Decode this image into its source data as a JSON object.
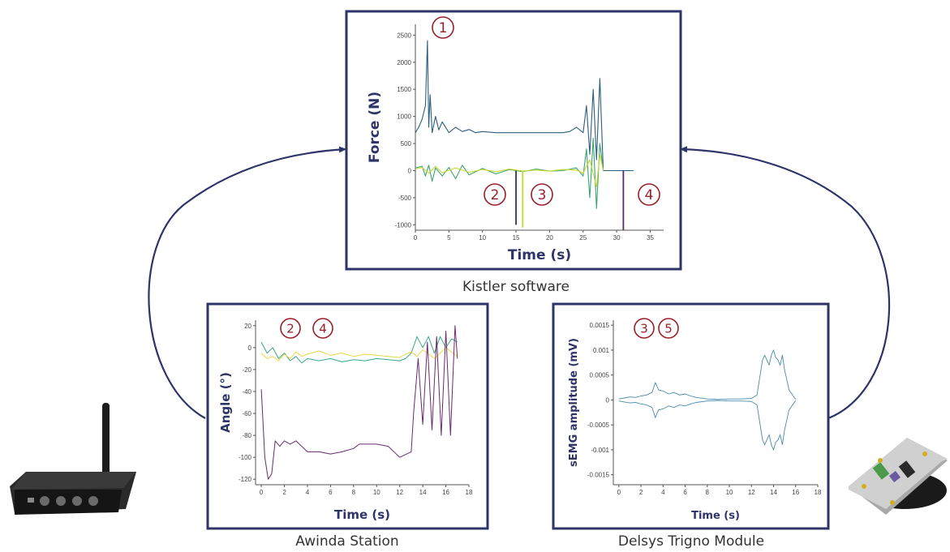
{
  "colors": {
    "panel_border": "#2e3468",
    "connector": "#2e3468",
    "marker": "#9a1f2a",
    "axis_title": "#2e3468",
    "force_vertical": "#2d5e7e",
    "force_green": "#3aa66e",
    "force_yellow": "#c8d82a",
    "angle_green": "#3aa68a",
    "angle_yellow": "#e8d84a",
    "angle_purple": "#6a2a6e",
    "emg": "#4a8aaa",
    "event_line_1": "#2e3468",
    "event_line_2": "#c8d82a",
    "event_line_3": "#5a2a6e"
  },
  "captions": {
    "kistler": "Kistler software",
    "awinda": "Awinda Station",
    "delsys": "Delsys Trigno Module"
  },
  "devices": {
    "left_icon": "wireless-router-icon",
    "right_icon": "emg-trigger-module-icon"
  },
  "chart_data": [
    {
      "type": "line",
      "panel": "kistler",
      "xlabel": "Time (s)",
      "ylabel": "Force (N)",
      "xlim": [
        0,
        37
      ],
      "ylim": [
        -1100,
        2700
      ],
      "xticks": [
        "0",
        "5",
        "10",
        "15",
        "20",
        "25",
        "30",
        "35"
      ],
      "xtick_values": [
        0,
        5,
        10,
        15,
        20,
        25,
        30,
        35
      ],
      "yticks": [
        "-1000",
        "-500",
        "0",
        "500",
        "1000",
        "1500",
        "2000",
        "2500"
      ],
      "ytick_values": [
        -1000,
        -500,
        0,
        500,
        1000,
        1500,
        2000,
        2500
      ],
      "series": [
        {
          "color": "#2d5e7e",
          "x": [
            0,
            0.5,
            1,
            1.5,
            1.8,
            2,
            2.2,
            2.5,
            3,
            3.5,
            4,
            5,
            6,
            7,
            8,
            9,
            10,
            12,
            14,
            16,
            18,
            20,
            22,
            23,
            24,
            25,
            25.5,
            26,
            26.5,
            27,
            27.5,
            28,
            32.5
          ],
          "y": [
            700,
            800,
            950,
            1200,
            2400,
            800,
            1400,
            700,
            1000,
            750,
            900,
            700,
            800,
            720,
            760,
            700,
            720,
            700,
            700,
            700,
            700,
            700,
            700,
            720,
            800,
            700,
            1200,
            300,
            1500,
            200,
            1700,
            0,
            0
          ]
        },
        {
          "color": "#3aa66e",
          "x": [
            0,
            1,
            1.5,
            2,
            2.5,
            3,
            4,
            5,
            6,
            7,
            8,
            10,
            12,
            14,
            16,
            18,
            20,
            22,
            24,
            25,
            25.5,
            26,
            26.5,
            27,
            27.5,
            28
          ],
          "y": [
            50,
            80,
            -100,
            100,
            -200,
            50,
            -100,
            60,
            -150,
            100,
            -80,
            40,
            -60,
            20,
            -20,
            30,
            -10,
            0,
            50,
            -100,
            400,
            -500,
            600,
            -700,
            500,
            0
          ]
        },
        {
          "color": "#c8d82a",
          "x": [
            0,
            1,
            2,
            3,
            4,
            6,
            8,
            10,
            12,
            14,
            16,
            18,
            20,
            22,
            24,
            25,
            26,
            27,
            27.5,
            28
          ],
          "y": [
            30,
            60,
            -50,
            80,
            -40,
            50,
            -30,
            20,
            -20,
            30,
            -10,
            10,
            -10,
            20,
            10,
            -50,
            200,
            -300,
            300,
            0
          ]
        }
      ],
      "events": [
        {
          "x": 15,
          "y_bottom": -1000,
          "color": "#2e3468"
        },
        {
          "x": 16,
          "y_bottom": -1050,
          "color": "#c8d82a"
        },
        {
          "x": 31,
          "y_bottom": -1100,
          "color": "#5a2a6e"
        }
      ],
      "markers": [
        "1",
        "2",
        "3",
        "4"
      ]
    },
    {
      "type": "line",
      "panel": "awinda",
      "xlabel": "Time (s)",
      "ylabel": "Angle (°)",
      "xlim": [
        -0.5,
        18
      ],
      "ylim": [
        -125,
        25
      ],
      "xticks": [
        "0",
        "2",
        "4",
        "6",
        "8",
        "10",
        "12",
        "14",
        "16",
        "18"
      ],
      "xtick_values": [
        0,
        2,
        4,
        6,
        8,
        10,
        12,
        14,
        16,
        18
      ],
      "yticks": [
        "-120",
        "-100",
        "-80",
        "-60",
        "-40",
        "-20",
        "0",
        "20"
      ],
      "ytick_values": [
        -120,
        -100,
        -80,
        -60,
        -40,
        -20,
        0,
        20
      ],
      "series": [
        {
          "color": "#3aa68a",
          "x": [
            0,
            0.5,
            1,
            1.5,
            2,
            2.5,
            3,
            3.5,
            4,
            5,
            6,
            7,
            8,
            9,
            10,
            11,
            12,
            12.5,
            13,
            13.5,
            14,
            14.5,
            15,
            15.5,
            16,
            16.5,
            17
          ],
          "y": [
            5,
            -5,
            0,
            -10,
            -5,
            -12,
            -8,
            -14,
            -10,
            -12,
            -10,
            -13,
            -11,
            -12,
            -10,
            -11,
            -12,
            -10,
            -5,
            10,
            0,
            10,
            -5,
            10,
            0,
            8,
            5
          ]
        },
        {
          "color": "#e8d84a",
          "x": [
            0,
            0.5,
            1,
            1.5,
            2,
            2.5,
            3,
            3.5,
            4,
            5,
            6,
            7,
            8,
            9,
            10,
            11,
            12,
            12.5,
            13,
            13.5,
            14,
            15,
            16,
            17
          ],
          "y": [
            -5,
            -10,
            -8,
            -12,
            -6,
            -10,
            -4,
            -8,
            -6,
            -3,
            -7,
            -5,
            -8,
            -6,
            -7,
            -8,
            -9,
            -6,
            -4,
            -8,
            -2,
            -10,
            0,
            -8
          ]
        },
        {
          "color": "#6a2a6e",
          "x": [
            0,
            0.3,
            0.6,
            0.9,
            1.2,
            1.6,
            2,
            2.5,
            3,
            3.5,
            4,
            5,
            6,
            7,
            8,
            8.5,
            9,
            10,
            11,
            12,
            13,
            13.2,
            13.6,
            14,
            14.4,
            14.8,
            15.2,
            15.6,
            16,
            16.4,
            16.8,
            17
          ],
          "y": [
            -38,
            -100,
            -120,
            -115,
            -85,
            -90,
            -85,
            -88,
            -85,
            -90,
            -95,
            -95,
            -97,
            -95,
            -92,
            -88,
            -88,
            -88,
            -90,
            -100,
            -95,
            -60,
            -10,
            -70,
            5,
            -75,
            10,
            -80,
            15,
            -80,
            20,
            -10
          ]
        }
      ],
      "markers": [
        "2",
        "4"
      ]
    },
    {
      "type": "line",
      "panel": "delsys",
      "xlabel": "Time (s)",
      "ylabel": "sEMG amplitude (mV)",
      "xlim": [
        -0.5,
        18
      ],
      "ylim": [
        -0.0017,
        0.0016
      ],
      "xticks": [
        "0",
        "2",
        "4",
        "6",
        "8",
        "10",
        "12",
        "14",
        "16",
        "18"
      ],
      "xtick_values": [
        0,
        2,
        4,
        6,
        8,
        10,
        12,
        14,
        16,
        18
      ],
      "yticks": [
        "-0.0015",
        "-0.001",
        "-0.0005",
        "0",
        "0.0005",
        "0.001",
        "0.0015"
      ],
      "ytick_values": [
        -0.0015,
        -0.001,
        -0.0005,
        0,
        0.0005,
        0.001,
        0.0015
      ],
      "series": [
        {
          "color": "#4a8aaa",
          "x": [
            0,
            0.5,
            1,
            1.5,
            2,
            2.5,
            3,
            3.3,
            3.6,
            4,
            4.5,
            5,
            5.5,
            6,
            6.5,
            7,
            8,
            9,
            10,
            11,
            12,
            12.5,
            13,
            13.2,
            13.4,
            13.6,
            13.8,
            14,
            14.2,
            14.4,
            14.6,
            14.8,
            15,
            15.2,
            15.4,
            16
          ],
          "y": [
            2e-05,
            4e-05,
            6e-05,
            5e-05,
            8e-05,
            0.0001,
            0.00015,
            0.00035,
            0.0002,
            0.00018,
            0.00012,
            0.00015,
            0.0001,
            0.00012,
            8e-05,
            5e-05,
            2e-05,
            1e-05,
            2e-05,
            2e-05,
            3e-05,
            0.0001,
            0.0008,
            0.0009,
            0.0008,
            0.0007,
            0.0009,
            0.001,
            0.00085,
            0.0008,
            0.0007,
            0.0009,
            0.0006,
            0.0004,
            0.0002,
            1e-05
          ]
        }
      ],
      "markers": [
        "3",
        "5"
      ]
    }
  ]
}
